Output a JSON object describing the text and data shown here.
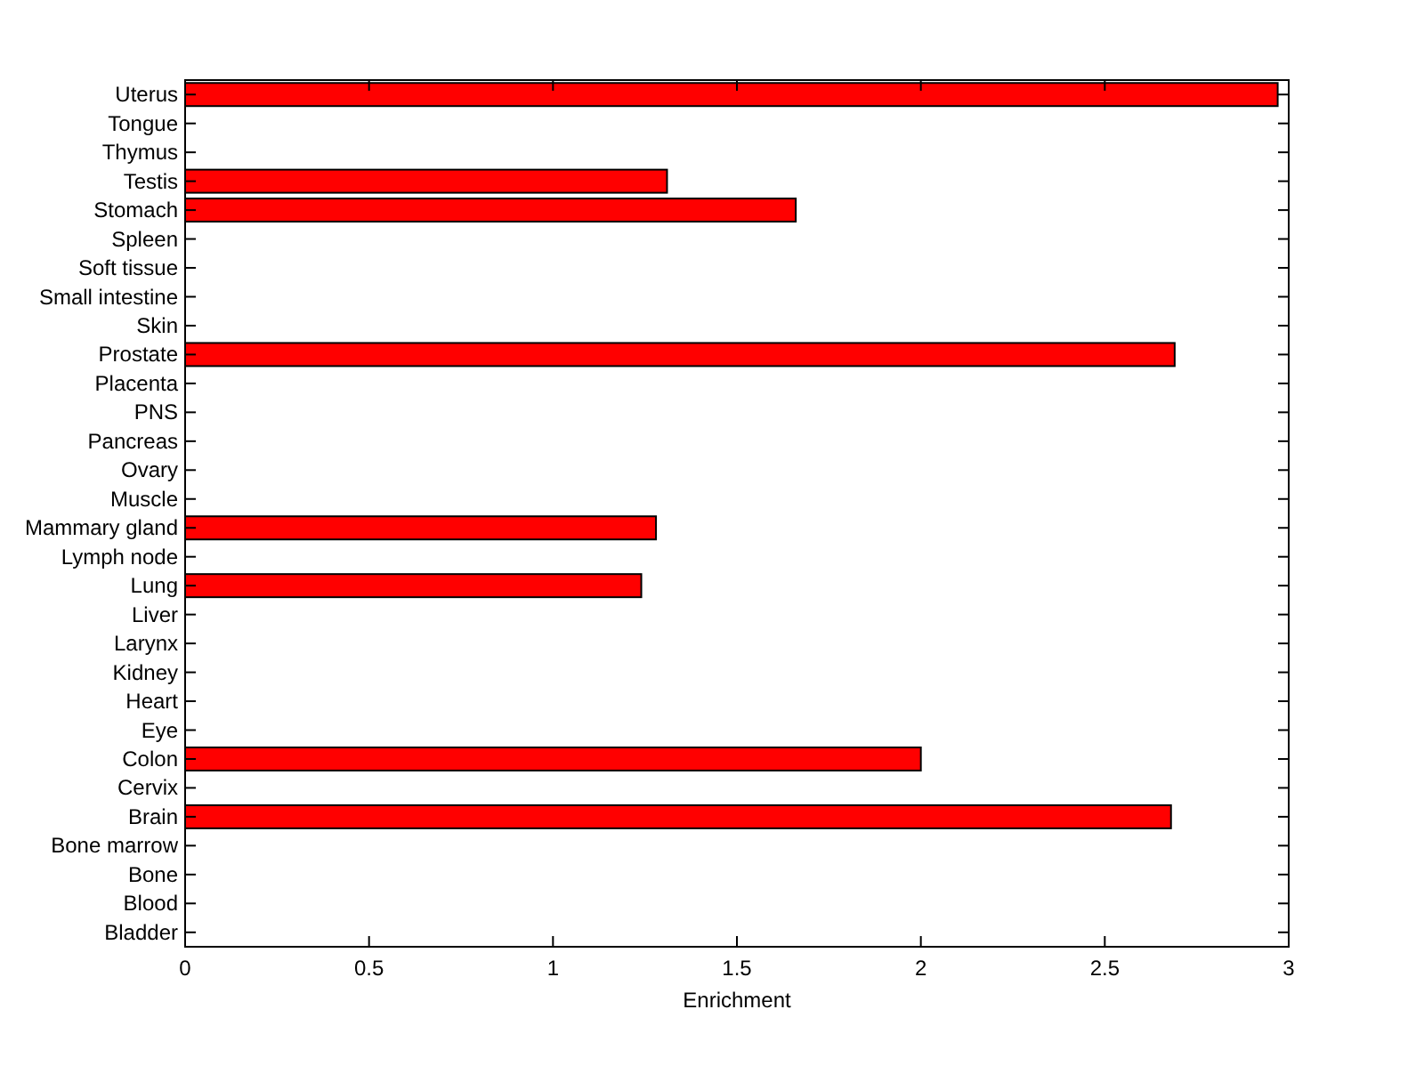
{
  "chart_data": {
    "type": "bar",
    "orientation": "horizontal",
    "xlabel": "Enrichment",
    "categories": [
      "Uterus",
      "Tongue",
      "Thymus",
      "Testis",
      "Stomach",
      "Spleen",
      "Soft tissue",
      "Small intestine",
      "Skin",
      "Prostate",
      "Placenta",
      "PNS",
      "Pancreas",
      "Ovary",
      "Muscle",
      "Mammary gland",
      "Lymph node",
      "Lung",
      "Liver",
      "Larynx",
      "Kidney",
      "Heart",
      "Eye",
      "Colon",
      "Cervix",
      "Brain",
      "Bone marrow",
      "Bone",
      "Blood",
      "Bladder"
    ],
    "values": [
      2.97,
      0,
      0,
      1.31,
      1.66,
      0,
      0,
      0,
      0,
      2.69,
      0,
      0,
      0,
      0,
      0,
      1.28,
      0,
      1.24,
      0,
      0,
      0,
      0,
      0,
      2.0,
      0,
      2.68,
      0,
      0,
      0,
      0
    ],
    "color": "#ff0000",
    "xlim": [
      0,
      3
    ],
    "xticks": [
      0,
      0.5,
      1,
      1.5,
      2,
      2.5,
      3
    ],
    "grid": false
  }
}
